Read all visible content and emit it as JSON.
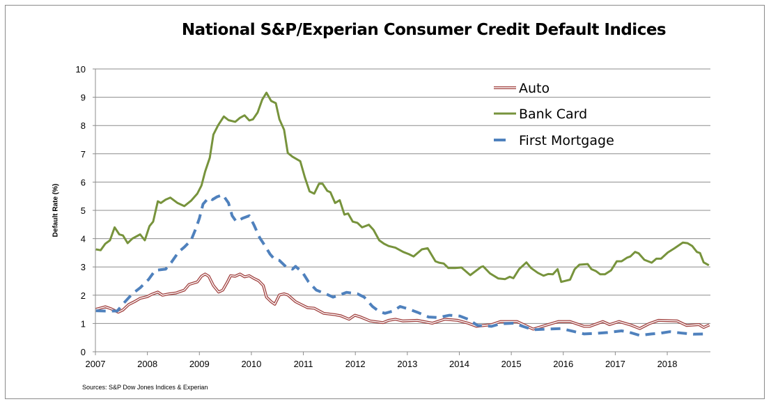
{
  "chart_data": {
    "type": "line",
    "title": "National S&P/Experian Consumer Credit Default Indices",
    "ylabel": "Default Rate (%)",
    "xlabel": "",
    "xlim": [
      2007,
      2018.83
    ],
    "ylim": [
      0,
      10
    ],
    "x_ticks": [
      "2007",
      "2008",
      "2009",
      "2010",
      "2011",
      "2012",
      "2013",
      "2014",
      "2015",
      "2016",
      "2017",
      "2018"
    ],
    "y_ticks": [
      "0",
      "1",
      "2",
      "3",
      "4",
      "5",
      "6",
      "7",
      "8",
      "9",
      "10"
    ],
    "grid": "horizontal",
    "legend_placement": "top-right",
    "source": "Sources: S&P Dow Jones Indices & Experian",
    "series": [
      {
        "name": "Auto",
        "color": "#a0403e",
        "style": "double",
        "points": [
          [
            2007.01,
            1.5
          ],
          [
            2007.19,
            1.59
          ],
          [
            2007.3,
            1.52
          ],
          [
            2007.44,
            1.4
          ],
          [
            2007.53,
            1.48
          ],
          [
            2007.64,
            1.67
          ],
          [
            2007.75,
            1.77
          ],
          [
            2007.86,
            1.89
          ],
          [
            2008.0,
            1.95
          ],
          [
            2008.08,
            2.03
          ],
          [
            2008.2,
            2.11
          ],
          [
            2008.29,
            2.0
          ],
          [
            2008.42,
            2.05
          ],
          [
            2008.55,
            2.08
          ],
          [
            2008.71,
            2.18
          ],
          [
            2008.8,
            2.38
          ],
          [
            2008.96,
            2.47
          ],
          [
            2009.04,
            2.67
          ],
          [
            2009.11,
            2.75
          ],
          [
            2009.18,
            2.67
          ],
          [
            2009.27,
            2.34
          ],
          [
            2009.37,
            2.11
          ],
          [
            2009.45,
            2.18
          ],
          [
            2009.54,
            2.47
          ],
          [
            2009.6,
            2.69
          ],
          [
            2009.69,
            2.67
          ],
          [
            2009.78,
            2.75
          ],
          [
            2009.87,
            2.65
          ],
          [
            2009.96,
            2.69
          ],
          [
            2010.05,
            2.59
          ],
          [
            2010.14,
            2.51
          ],
          [
            2010.23,
            2.34
          ],
          [
            2010.29,
            1.93
          ],
          [
            2010.38,
            1.77
          ],
          [
            2010.45,
            1.68
          ],
          [
            2010.54,
            2.01
          ],
          [
            2010.63,
            2.05
          ],
          [
            2010.7,
            2.01
          ],
          [
            2010.85,
            1.77
          ],
          [
            2010.99,
            1.64
          ],
          [
            2011.08,
            1.56
          ],
          [
            2011.21,
            1.54
          ],
          [
            2011.39,
            1.36
          ],
          [
            2011.61,
            1.31
          ],
          [
            2011.72,
            1.27
          ],
          [
            2011.88,
            1.15
          ],
          [
            2011.99,
            1.29
          ],
          [
            2012.1,
            1.23
          ],
          [
            2012.28,
            1.09
          ],
          [
            2012.53,
            1.03
          ],
          [
            2012.64,
            1.11
          ],
          [
            2012.77,
            1.15
          ],
          [
            2012.91,
            1.09
          ],
          [
            2013.19,
            1.11
          ],
          [
            2013.48,
            1.01
          ],
          [
            2013.72,
            1.15
          ],
          [
            2013.97,
            1.11
          ],
          [
            2014.17,
            1.01
          ],
          [
            2014.33,
            0.9
          ],
          [
            2014.62,
            0.96
          ],
          [
            2014.79,
            1.07
          ],
          [
            2015.11,
            1.07
          ],
          [
            2015.42,
            0.8
          ],
          [
            2015.69,
            0.95
          ],
          [
            2015.91,
            1.07
          ],
          [
            2016.13,
            1.07
          ],
          [
            2016.4,
            0.9
          ],
          [
            2016.51,
            0.9
          ],
          [
            2016.76,
            1.07
          ],
          [
            2016.89,
            0.96
          ],
          [
            2017.07,
            1.07
          ],
          [
            2017.29,
            0.95
          ],
          [
            2017.47,
            0.82
          ],
          [
            2017.65,
            0.99
          ],
          [
            2017.83,
            1.11
          ],
          [
            2018.19,
            1.09
          ],
          [
            2018.37,
            0.93
          ],
          [
            2018.61,
            0.96
          ],
          [
            2018.7,
            0.86
          ],
          [
            2018.81,
            0.95
          ]
        ]
      },
      {
        "name": "Bank Card",
        "color": "#77933c",
        "style": "solid",
        "points": [
          [
            2007.01,
            3.62
          ],
          [
            2007.1,
            3.59
          ],
          [
            2007.19,
            3.82
          ],
          [
            2007.28,
            3.94
          ],
          [
            2007.37,
            4.4
          ],
          [
            2007.46,
            4.15
          ],
          [
            2007.53,
            4.11
          ],
          [
            2007.62,
            3.84
          ],
          [
            2007.71,
            4.0
          ],
          [
            2007.86,
            4.15
          ],
          [
            2007.95,
            3.94
          ],
          [
            2008.04,
            4.44
          ],
          [
            2008.11,
            4.6
          ],
          [
            2008.2,
            5.32
          ],
          [
            2008.26,
            5.26
          ],
          [
            2008.35,
            5.38
          ],
          [
            2008.44,
            5.45
          ],
          [
            2008.58,
            5.26
          ],
          [
            2008.71,
            5.15
          ],
          [
            2008.84,
            5.34
          ],
          [
            2008.96,
            5.59
          ],
          [
            2009.04,
            5.88
          ],
          [
            2009.11,
            6.37
          ],
          [
            2009.2,
            6.86
          ],
          [
            2009.27,
            7.68
          ],
          [
            2009.36,
            8.01
          ],
          [
            2009.47,
            8.32
          ],
          [
            2009.56,
            8.19
          ],
          [
            2009.69,
            8.13
          ],
          [
            2009.78,
            8.27
          ],
          [
            2009.87,
            8.36
          ],
          [
            2009.96,
            8.18
          ],
          [
            2010.03,
            8.22
          ],
          [
            2010.12,
            8.46
          ],
          [
            2010.21,
            8.92
          ],
          [
            2010.29,
            9.16
          ],
          [
            2010.38,
            8.87
          ],
          [
            2010.47,
            8.79
          ],
          [
            2010.54,
            8.22
          ],
          [
            2010.63,
            7.85
          ],
          [
            2010.7,
            7.03
          ],
          [
            2010.79,
            6.9
          ],
          [
            2010.94,
            6.74
          ],
          [
            2011.03,
            6.16
          ],
          [
            2011.12,
            5.67
          ],
          [
            2011.21,
            5.59
          ],
          [
            2011.3,
            5.94
          ],
          [
            2011.37,
            5.94
          ],
          [
            2011.46,
            5.69
          ],
          [
            2011.52,
            5.64
          ],
          [
            2011.61,
            5.26
          ],
          [
            2011.7,
            5.36
          ],
          [
            2011.79,
            4.85
          ],
          [
            2011.86,
            4.89
          ],
          [
            2011.95,
            4.6
          ],
          [
            2012.04,
            4.56
          ],
          [
            2012.13,
            4.4
          ],
          [
            2012.26,
            4.49
          ],
          [
            2012.35,
            4.31
          ],
          [
            2012.46,
            3.94
          ],
          [
            2012.55,
            3.82
          ],
          [
            2012.64,
            3.74
          ],
          [
            2012.77,
            3.68
          ],
          [
            2012.92,
            3.53
          ],
          [
            2013.03,
            3.45
          ],
          [
            2013.12,
            3.37
          ],
          [
            2013.28,
            3.62
          ],
          [
            2013.39,
            3.66
          ],
          [
            2013.54,
            3.2
          ],
          [
            2013.61,
            3.15
          ],
          [
            2013.7,
            3.12
          ],
          [
            2013.79,
            2.96
          ],
          [
            2013.92,
            2.96
          ],
          [
            2014.04,
            2.98
          ],
          [
            2014.21,
            2.71
          ],
          [
            2014.42,
            3.0
          ],
          [
            2014.46,
            3.02
          ],
          [
            2014.59,
            2.77
          ],
          [
            2014.75,
            2.59
          ],
          [
            2014.88,
            2.57
          ],
          [
            2014.97,
            2.65
          ],
          [
            2015.04,
            2.6
          ],
          [
            2015.15,
            2.92
          ],
          [
            2015.29,
            3.16
          ],
          [
            2015.38,
            2.96
          ],
          [
            2015.51,
            2.79
          ],
          [
            2015.62,
            2.69
          ],
          [
            2015.71,
            2.75
          ],
          [
            2015.8,
            2.74
          ],
          [
            2015.89,
            2.92
          ],
          [
            2015.96,
            2.47
          ],
          [
            2016.13,
            2.55
          ],
          [
            2016.22,
            2.92
          ],
          [
            2016.31,
            3.08
          ],
          [
            2016.47,
            3.1
          ],
          [
            2016.54,
            2.92
          ],
          [
            2016.63,
            2.85
          ],
          [
            2016.71,
            2.74
          ],
          [
            2016.8,
            2.74
          ],
          [
            2016.92,
            2.88
          ],
          [
            2017.03,
            3.2
          ],
          [
            2017.12,
            3.2
          ],
          [
            2017.23,
            3.33
          ],
          [
            2017.29,
            3.37
          ],
          [
            2017.38,
            3.53
          ],
          [
            2017.45,
            3.48
          ],
          [
            2017.56,
            3.25
          ],
          [
            2017.7,
            3.15
          ],
          [
            2017.79,
            3.29
          ],
          [
            2017.88,
            3.29
          ],
          [
            2018.01,
            3.51
          ],
          [
            2018.14,
            3.66
          ],
          [
            2018.3,
            3.86
          ],
          [
            2018.39,
            3.84
          ],
          [
            2018.48,
            3.74
          ],
          [
            2018.57,
            3.53
          ],
          [
            2018.63,
            3.49
          ],
          [
            2018.7,
            3.16
          ],
          [
            2018.8,
            3.06
          ]
        ]
      },
      {
        "name": "First Mortgage",
        "color": "#4f81bd",
        "style": "dashed",
        "points": [
          [
            2007.01,
            1.45
          ],
          [
            2007.19,
            1.44
          ],
          [
            2007.42,
            1.44
          ],
          [
            2007.55,
            1.73
          ],
          [
            2007.71,
            2.05
          ],
          [
            2007.86,
            2.26
          ],
          [
            2008.02,
            2.55
          ],
          [
            2008.15,
            2.88
          ],
          [
            2008.35,
            2.92
          ],
          [
            2008.46,
            3.16
          ],
          [
            2008.6,
            3.53
          ],
          [
            2008.71,
            3.7
          ],
          [
            2008.84,
            3.94
          ],
          [
            2008.93,
            4.35
          ],
          [
            2009.0,
            4.72
          ],
          [
            2009.07,
            5.22
          ],
          [
            2009.18,
            5.45
          ],
          [
            2009.25,
            5.38
          ],
          [
            2009.34,
            5.48
          ],
          [
            2009.45,
            5.55
          ],
          [
            2009.56,
            5.26
          ],
          [
            2009.63,
            4.81
          ],
          [
            2009.71,
            4.6
          ],
          [
            2009.83,
            4.72
          ],
          [
            2009.96,
            4.81
          ],
          [
            2010.05,
            4.48
          ],
          [
            2010.16,
            4.03
          ],
          [
            2010.25,
            3.78
          ],
          [
            2010.36,
            3.45
          ],
          [
            2010.45,
            3.26
          ],
          [
            2010.54,
            3.23
          ],
          [
            2010.67,
            3.0
          ],
          [
            2010.79,
            2.92
          ],
          [
            2010.85,
            3.02
          ],
          [
            2010.99,
            2.79
          ],
          [
            2011.1,
            2.47
          ],
          [
            2011.25,
            2.18
          ],
          [
            2011.43,
            2.05
          ],
          [
            2011.57,
            1.93
          ],
          [
            2011.7,
            2.01
          ],
          [
            2011.83,
            2.1
          ],
          [
            2012.04,
            2.05
          ],
          [
            2012.17,
            1.93
          ],
          [
            2012.33,
            1.6
          ],
          [
            2012.46,
            1.42
          ],
          [
            2012.57,
            1.36
          ],
          [
            2012.73,
            1.44
          ],
          [
            2012.86,
            1.6
          ],
          [
            2013.01,
            1.52
          ],
          [
            2013.19,
            1.4
          ],
          [
            2013.41,
            1.23
          ],
          [
            2013.59,
            1.21
          ],
          [
            2013.81,
            1.29
          ],
          [
            2014.01,
            1.26
          ],
          [
            2014.17,
            1.15
          ],
          [
            2014.35,
            0.93
          ],
          [
            2014.62,
            0.9
          ],
          [
            2014.79,
            0.99
          ],
          [
            2015.06,
            1.01
          ],
          [
            2015.22,
            0.9
          ],
          [
            2015.42,
            0.78
          ],
          [
            2015.69,
            0.8
          ],
          [
            2015.96,
            0.82
          ],
          [
            2016.22,
            0.71
          ],
          [
            2016.4,
            0.63
          ],
          [
            2016.63,
            0.65
          ],
          [
            2016.85,
            0.68
          ],
          [
            2017.12,
            0.74
          ],
          [
            2017.25,
            0.7
          ],
          [
            2017.47,
            0.58
          ],
          [
            2017.7,
            0.63
          ],
          [
            2017.88,
            0.66
          ],
          [
            2018.05,
            0.71
          ],
          [
            2018.28,
            0.66
          ],
          [
            2018.5,
            0.62
          ],
          [
            2018.8,
            0.63
          ]
        ]
      }
    ]
  }
}
